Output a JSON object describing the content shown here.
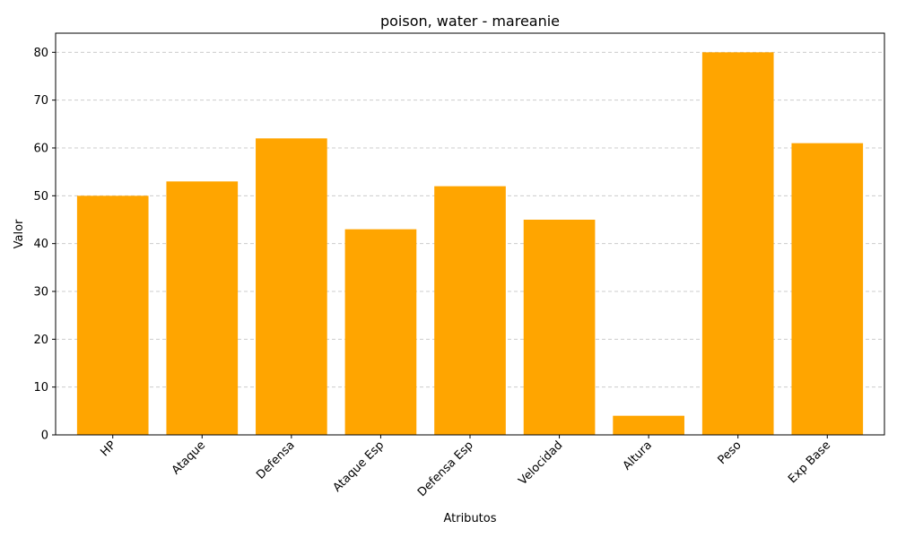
{
  "chart_data": {
    "type": "bar",
    "title": "poison, water - mareanie",
    "xlabel": "Atributos",
    "ylabel": "Valor",
    "categories": [
      "HP",
      "Ataque",
      "Defensa",
      "Ataque Esp",
      "Defensa Esp",
      "Velocidad",
      "Altura",
      "Peso",
      "Exp Base"
    ],
    "values": [
      50,
      53,
      62,
      43,
      52,
      45,
      4,
      80,
      61
    ],
    "ylim": [
      0,
      84
    ],
    "yticks": [
      0,
      10,
      20,
      30,
      40,
      50,
      60,
      70,
      80
    ],
    "grid": "horizontal dashed",
    "bar_color": "#ffa500",
    "grid_color": "#cccccc"
  }
}
